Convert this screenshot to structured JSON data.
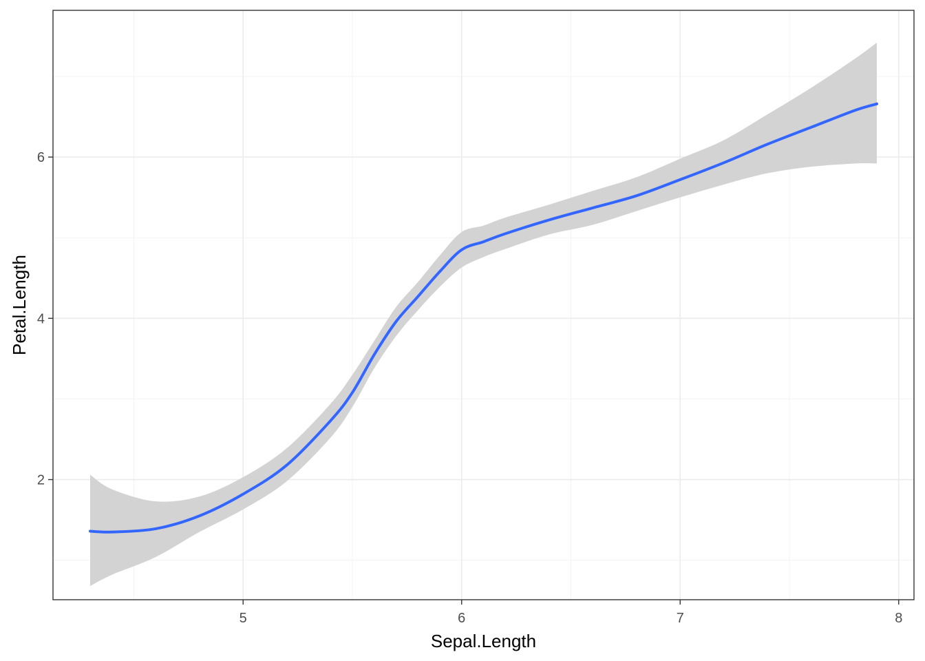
{
  "chart_data": {
    "type": "line",
    "xlabel": "Sepal.Length",
    "ylabel": "Petal.Length",
    "xlim": [
      4.13,
      8.07
    ],
    "ylim": [
      0.51,
      7.82
    ],
    "x_ticks": [
      5,
      6,
      7,
      8
    ],
    "y_ticks": [
      2,
      4,
      6
    ],
    "x_tick_labels": [
      "5",
      "6",
      "7",
      "8"
    ],
    "y_tick_labels": [
      "2",
      "4",
      "6"
    ],
    "grid": true,
    "legend": "none",
    "colors": {
      "line": "#3366ff",
      "ribbon": "#d3d3d3",
      "panel_border": "#333333"
    },
    "series": [
      {
        "x": [
          4.3,
          4.4,
          4.6,
          4.8,
          5.0,
          5.2,
          5.4,
          5.5,
          5.6,
          5.7,
          5.8,
          5.9,
          6.0,
          6.1,
          6.2,
          6.4,
          6.6,
          6.8,
          7.0,
          7.2,
          7.4,
          7.6,
          7.8,
          7.9
        ],
        "y": [
          1.36,
          1.35,
          1.39,
          1.55,
          1.82,
          2.18,
          2.73,
          3.08,
          3.55,
          3.96,
          4.27,
          4.58,
          4.85,
          4.95,
          5.05,
          5.22,
          5.37,
          5.52,
          5.72,
          5.93,
          6.16,
          6.37,
          6.58,
          6.66
        ],
        "lower": [
          0.68,
          0.82,
          1.04,
          1.35,
          1.63,
          1.98,
          2.52,
          2.9,
          3.38,
          3.78,
          4.1,
          4.39,
          4.63,
          4.76,
          4.86,
          5.04,
          5.16,
          5.33,
          5.5,
          5.66,
          5.8,
          5.88,
          5.92,
          5.92
        ],
        "upper": [
          2.06,
          1.88,
          1.73,
          1.79,
          2.03,
          2.39,
          2.94,
          3.3,
          3.72,
          4.14,
          4.45,
          4.78,
          5.07,
          5.15,
          5.25,
          5.41,
          5.58,
          5.75,
          5.98,
          6.21,
          6.53,
          6.86,
          7.22,
          7.42
        ]
      }
    ]
  }
}
